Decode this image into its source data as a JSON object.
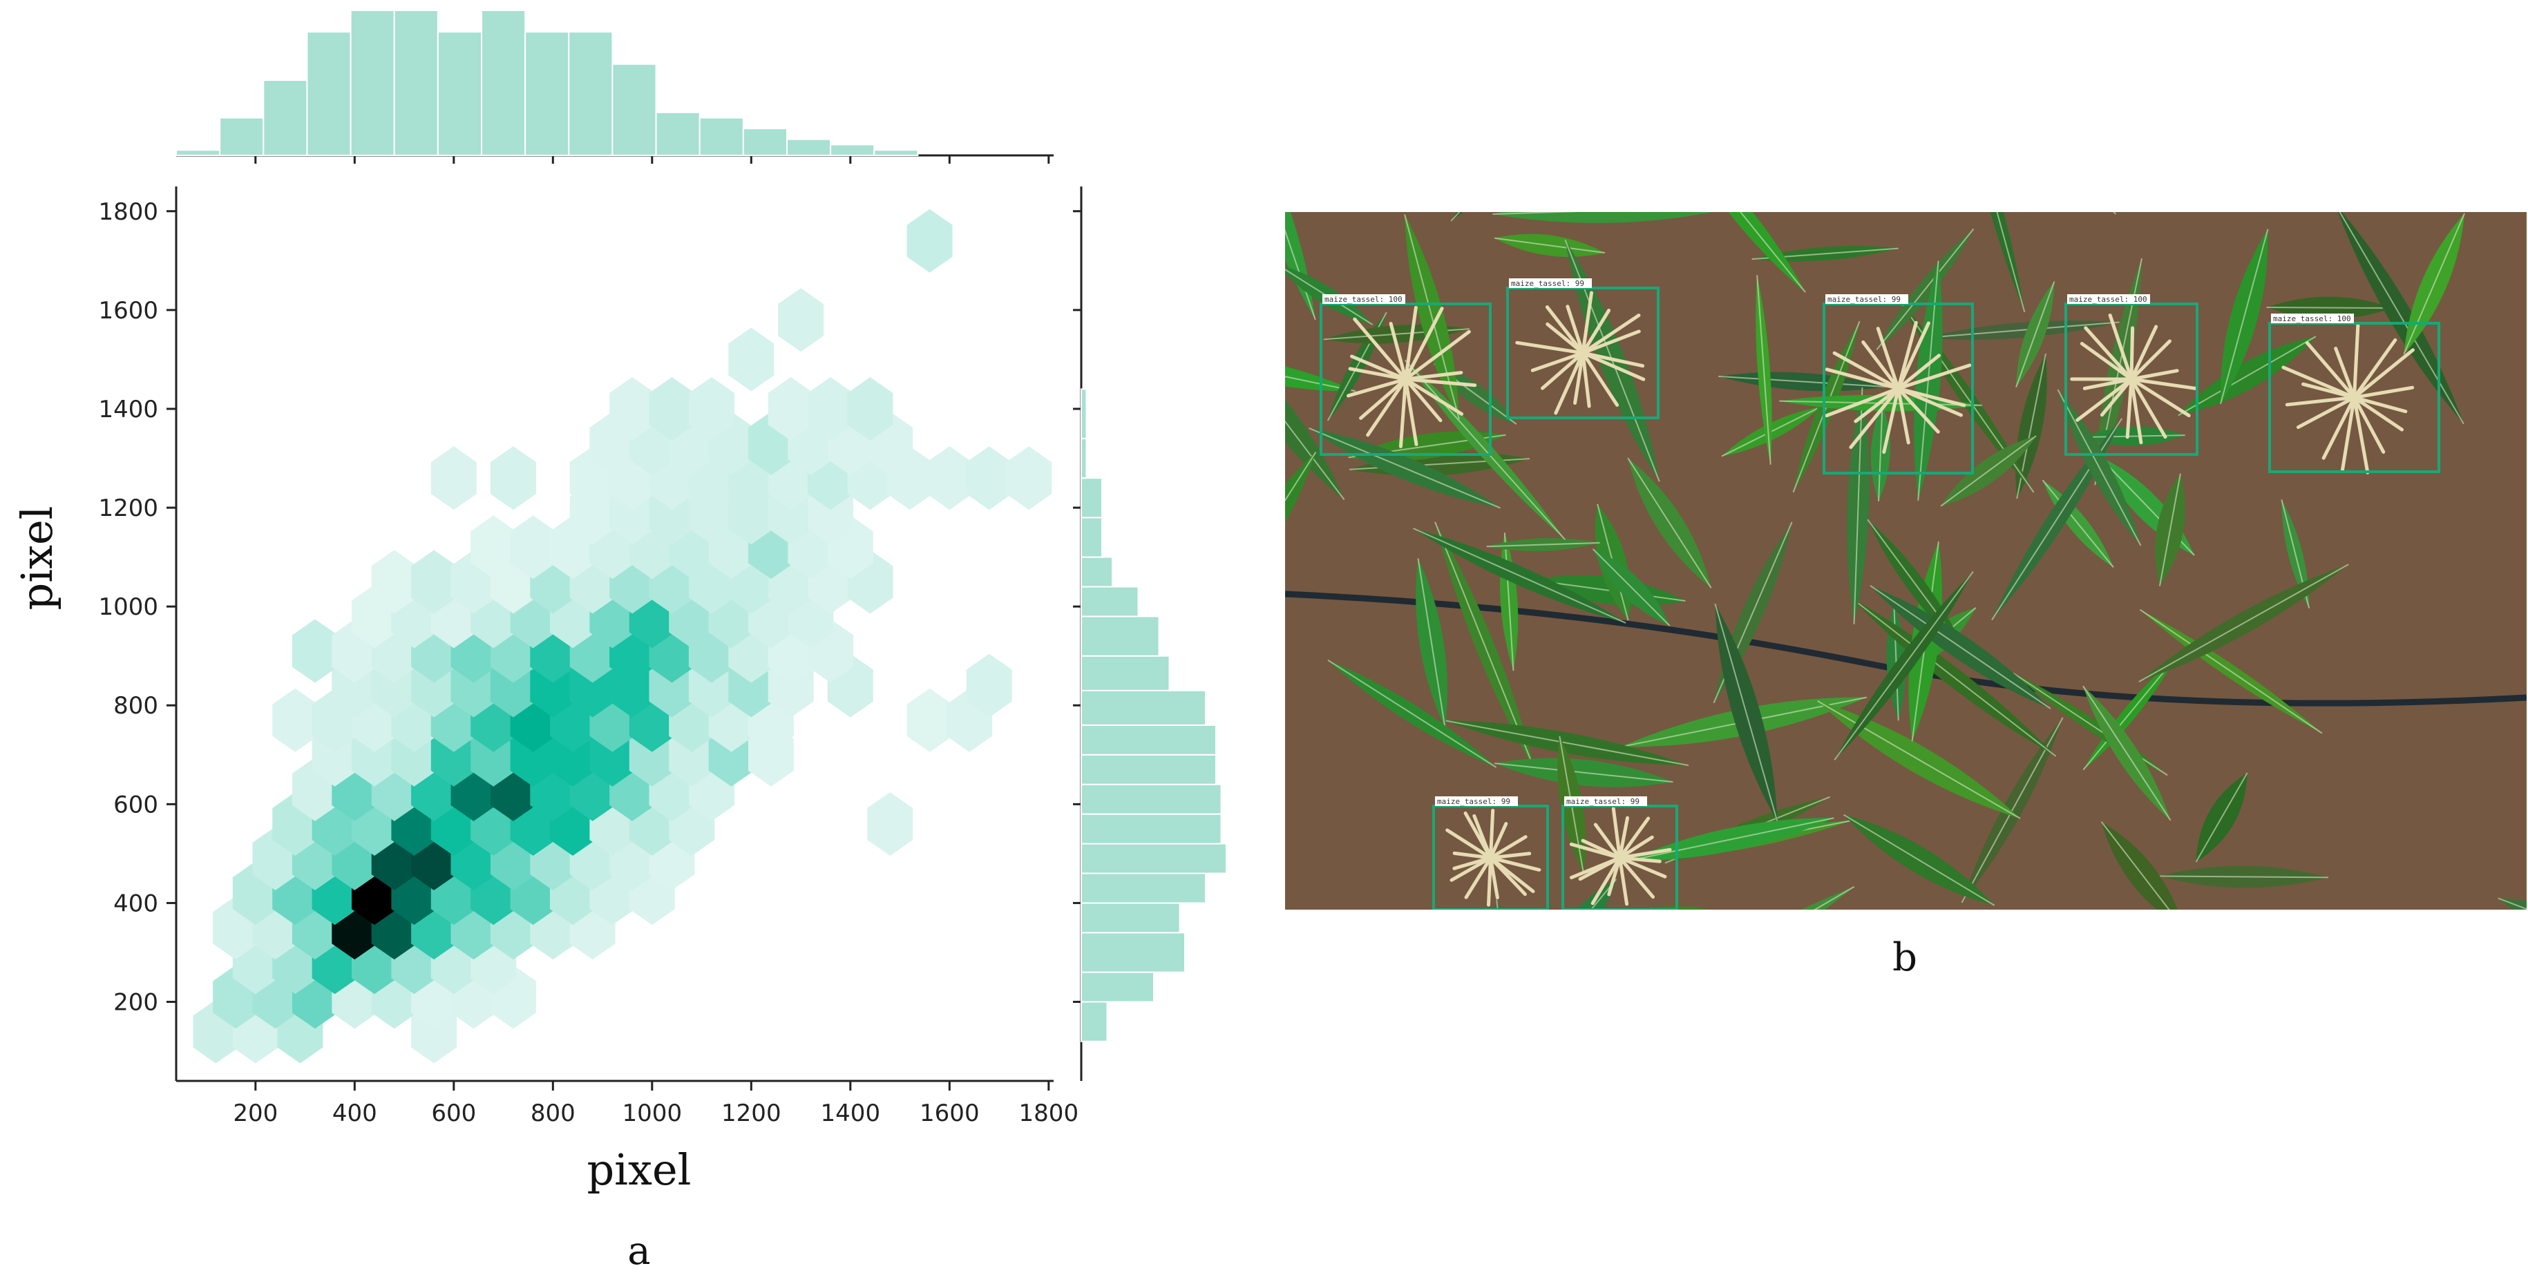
{
  "figure": {
    "panel_a_label": "a",
    "panel_b_label": "b"
  },
  "colors": {
    "hist_fill": "#a8e0d2",
    "hist_stroke": "#ffffff",
    "hex_light": "#e8f7f3",
    "hex_mid": "#00bb9a",
    "hex_dark": "#000000",
    "box_stroke": "#18a878",
    "soil": "#6b4f3a",
    "leaf": "#3f7f38"
  },
  "chart_data": [
    {
      "type": "heatmap",
      "subtype": "hexbin-jointplot",
      "title": "",
      "xlabel": "pixel",
      "ylabel": "pixel",
      "xlim": [
        40,
        1810
      ],
      "ylim": [
        40,
        1850
      ],
      "xticks": [
        200,
        400,
        600,
        800,
        1000,
        1200,
        1400,
        1600,
        1800
      ],
      "yticks": [
        200,
        400,
        600,
        800,
        1000,
        1200,
        1400,
        1600,
        1800
      ],
      "grid": false,
      "legend": "none",
      "hexbins": [
        {
          "x": 120,
          "y": 140,
          "w": 0.12
        },
        {
          "x": 200,
          "y": 140,
          "w": 0.08
        },
        {
          "x": 290,
          "y": 140,
          "w": 0.2
        },
        {
          "x": 560,
          "y": 140,
          "w": 0.06
        },
        {
          "x": 160,
          "y": 210,
          "w": 0.25
        },
        {
          "x": 240,
          "y": 210,
          "w": 0.3
        },
        {
          "x": 320,
          "y": 210,
          "w": 0.55
        },
        {
          "x": 400,
          "y": 210,
          "w": 0.1
        },
        {
          "x": 480,
          "y": 210,
          "w": 0.15
        },
        {
          "x": 560,
          "y": 210,
          "w": 0.05
        },
        {
          "x": 640,
          "y": 210,
          "w": 0.06
        },
        {
          "x": 720,
          "y": 210,
          "w": 0.05
        },
        {
          "x": 200,
          "y": 280,
          "w": 0.15
        },
        {
          "x": 280,
          "y": 280,
          "w": 0.3
        },
        {
          "x": 360,
          "y": 280,
          "w": 0.85
        },
        {
          "x": 440,
          "y": 280,
          "w": 0.6
        },
        {
          "x": 520,
          "y": 280,
          "w": 0.35
        },
        {
          "x": 600,
          "y": 280,
          "w": 0.15
        },
        {
          "x": 680,
          "y": 280,
          "w": 0.08
        },
        {
          "x": 160,
          "y": 350,
          "w": 0.08
        },
        {
          "x": 240,
          "y": 350,
          "w": 0.12
        },
        {
          "x": 320,
          "y": 350,
          "w": 0.45
        },
        {
          "x": 400,
          "y": 350,
          "w": 1.9
        },
        {
          "x": 480,
          "y": 350,
          "w": 1.5
        },
        {
          "x": 560,
          "y": 350,
          "w": 0.8
        },
        {
          "x": 640,
          "y": 350,
          "w": 0.45
        },
        {
          "x": 720,
          "y": 350,
          "w": 0.25
        },
        {
          "x": 800,
          "y": 350,
          "w": 0.12
        },
        {
          "x": 880,
          "y": 350,
          "w": 0.06
        },
        {
          "x": 200,
          "y": 420,
          "w": 0.2
        },
        {
          "x": 280,
          "y": 420,
          "w": 0.55
        },
        {
          "x": 360,
          "y": 420,
          "w": 0.9
        },
        {
          "x": 440,
          "y": 420,
          "w": 2.0
        },
        {
          "x": 520,
          "y": 420,
          "w": 1.4
        },
        {
          "x": 600,
          "y": 420,
          "w": 0.7
        },
        {
          "x": 680,
          "y": 420,
          "w": 0.85
        },
        {
          "x": 760,
          "y": 420,
          "w": 0.6
        },
        {
          "x": 840,
          "y": 420,
          "w": 0.2
        },
        {
          "x": 920,
          "y": 420,
          "w": 0.1
        },
        {
          "x": 1000,
          "y": 420,
          "w": 0.06
        },
        {
          "x": 240,
          "y": 490,
          "w": 0.15
        },
        {
          "x": 320,
          "y": 490,
          "w": 0.4
        },
        {
          "x": 400,
          "y": 490,
          "w": 0.6
        },
        {
          "x": 480,
          "y": 490,
          "w": 1.55
        },
        {
          "x": 560,
          "y": 490,
          "w": 1.6
        },
        {
          "x": 640,
          "y": 490,
          "w": 0.9
        },
        {
          "x": 720,
          "y": 490,
          "w": 0.55
        },
        {
          "x": 800,
          "y": 490,
          "w": 0.3
        },
        {
          "x": 880,
          "y": 490,
          "w": 0.15
        },
        {
          "x": 960,
          "y": 490,
          "w": 0.1
        },
        {
          "x": 1040,
          "y": 490,
          "w": 0.05
        },
        {
          "x": 280,
          "y": 560,
          "w": 0.2
        },
        {
          "x": 360,
          "y": 560,
          "w": 0.5
        },
        {
          "x": 440,
          "y": 560,
          "w": 0.45
        },
        {
          "x": 520,
          "y": 560,
          "w": 1.3
        },
        {
          "x": 600,
          "y": 560,
          "w": 0.95
        },
        {
          "x": 680,
          "y": 560,
          "w": 0.7
        },
        {
          "x": 760,
          "y": 560,
          "w": 0.9
        },
        {
          "x": 840,
          "y": 560,
          "w": 0.95
        },
        {
          "x": 920,
          "y": 560,
          "w": 0.12
        },
        {
          "x": 1000,
          "y": 560,
          "w": 0.2
        },
        {
          "x": 1080,
          "y": 560,
          "w": 0.1
        },
        {
          "x": 1480,
          "y": 560,
          "w": 0.06
        },
        {
          "x": 320,
          "y": 630,
          "w": 0.1
        },
        {
          "x": 400,
          "y": 630,
          "w": 0.55
        },
        {
          "x": 480,
          "y": 630,
          "w": 0.35
        },
        {
          "x": 560,
          "y": 630,
          "w": 0.85
        },
        {
          "x": 640,
          "y": 630,
          "w": 1.35
        },
        {
          "x": 720,
          "y": 630,
          "w": 1.45
        },
        {
          "x": 800,
          "y": 630,
          "w": 0.9
        },
        {
          "x": 880,
          "y": 630,
          "w": 0.85
        },
        {
          "x": 960,
          "y": 630,
          "w": 0.5
        },
        {
          "x": 1040,
          "y": 630,
          "w": 0.15
        },
        {
          "x": 1120,
          "y": 630,
          "w": 0.08
        },
        {
          "x": 360,
          "y": 700,
          "w": 0.08
        },
        {
          "x": 440,
          "y": 700,
          "w": 0.15
        },
        {
          "x": 520,
          "y": 700,
          "w": 0.2
        },
        {
          "x": 600,
          "y": 700,
          "w": 0.8
        },
        {
          "x": 680,
          "y": 700,
          "w": 0.6
        },
        {
          "x": 760,
          "y": 700,
          "w": 0.95
        },
        {
          "x": 840,
          "y": 700,
          "w": 0.95
        },
        {
          "x": 920,
          "y": 700,
          "w": 0.9
        },
        {
          "x": 1000,
          "y": 700,
          "w": 0.3
        },
        {
          "x": 1080,
          "y": 700,
          "w": 0.12
        },
        {
          "x": 1160,
          "y": 700,
          "w": 0.35
        },
        {
          "x": 1240,
          "y": 700,
          "w": 0.05
        },
        {
          "x": 280,
          "y": 770,
          "w": 0.06
        },
        {
          "x": 360,
          "y": 770,
          "w": 0.1
        },
        {
          "x": 440,
          "y": 770,
          "w": 0.08
        },
        {
          "x": 520,
          "y": 770,
          "w": 0.15
        },
        {
          "x": 600,
          "y": 770,
          "w": 0.45
        },
        {
          "x": 680,
          "y": 770,
          "w": 0.8
        },
        {
          "x": 760,
          "y": 770,
          "w": 1.05
        },
        {
          "x": 840,
          "y": 770,
          "w": 0.9
        },
        {
          "x": 920,
          "y": 770,
          "w": 0.6
        },
        {
          "x": 1000,
          "y": 770,
          "w": 0.85
        },
        {
          "x": 1080,
          "y": 770,
          "w": 0.2
        },
        {
          "x": 1160,
          "y": 770,
          "w": 0.1
        },
        {
          "x": 1240,
          "y": 770,
          "w": 0.05
        },
        {
          "x": 1560,
          "y": 770,
          "w": 0.04
        },
        {
          "x": 1640,
          "y": 770,
          "w": 0.06
        },
        {
          "x": 400,
          "y": 840,
          "w": 0.1
        },
        {
          "x": 480,
          "y": 840,
          "w": 0.12
        },
        {
          "x": 560,
          "y": 840,
          "w": 0.2
        },
        {
          "x": 640,
          "y": 840,
          "w": 0.4
        },
        {
          "x": 720,
          "y": 840,
          "w": 0.55
        },
        {
          "x": 800,
          "y": 840,
          "w": 0.95
        },
        {
          "x": 880,
          "y": 840,
          "w": 0.9
        },
        {
          "x": 960,
          "y": 840,
          "w": 0.9
        },
        {
          "x": 1040,
          "y": 840,
          "w": 0.35
        },
        {
          "x": 1120,
          "y": 840,
          "w": 0.15
        },
        {
          "x": 1200,
          "y": 840,
          "w": 0.3
        },
        {
          "x": 1280,
          "y": 840,
          "w": 0.06
        },
        {
          "x": 1400,
          "y": 840,
          "w": 0.1
        },
        {
          "x": 1680,
          "y": 840,
          "w": 0.08
        },
        {
          "x": 320,
          "y": 910,
          "w": 0.15
        },
        {
          "x": 400,
          "y": 910,
          "w": 0.06
        },
        {
          "x": 480,
          "y": 910,
          "w": 0.1
        },
        {
          "x": 560,
          "y": 910,
          "w": 0.3
        },
        {
          "x": 640,
          "y": 910,
          "w": 0.5
        },
        {
          "x": 720,
          "y": 910,
          "w": 0.4
        },
        {
          "x": 800,
          "y": 910,
          "w": 0.85
        },
        {
          "x": 880,
          "y": 910,
          "w": 0.5
        },
        {
          "x": 960,
          "y": 910,
          "w": 0.9
        },
        {
          "x": 1040,
          "y": 910,
          "w": 0.7
        },
        {
          "x": 1120,
          "y": 910,
          "w": 0.3
        },
        {
          "x": 1200,
          "y": 910,
          "w": 0.12
        },
        {
          "x": 1280,
          "y": 910,
          "w": 0.05
        },
        {
          "x": 1360,
          "y": 910,
          "w": 0.06
        },
        {
          "x": 440,
          "y": 980,
          "w": 0.04
        },
        {
          "x": 520,
          "y": 980,
          "w": 0.1
        },
        {
          "x": 600,
          "y": 980,
          "w": 0.06
        },
        {
          "x": 680,
          "y": 980,
          "w": 0.15
        },
        {
          "x": 760,
          "y": 980,
          "w": 0.3
        },
        {
          "x": 840,
          "y": 980,
          "w": 0.15
        },
        {
          "x": 920,
          "y": 980,
          "w": 0.5
        },
        {
          "x": 1000,
          "y": 980,
          "w": 0.85
        },
        {
          "x": 1080,
          "y": 980,
          "w": 0.3
        },
        {
          "x": 1160,
          "y": 980,
          "w": 0.2
        },
        {
          "x": 1240,
          "y": 980,
          "w": 0.1
        },
        {
          "x": 1320,
          "y": 980,
          "w": 0.08
        },
        {
          "x": 480,
          "y": 1050,
          "w": 0.04
        },
        {
          "x": 560,
          "y": 1050,
          "w": 0.12
        },
        {
          "x": 640,
          "y": 1050,
          "w": 0.08
        },
        {
          "x": 720,
          "y": 1050,
          "w": 0.04
        },
        {
          "x": 800,
          "y": 1050,
          "w": 0.25
        },
        {
          "x": 880,
          "y": 1050,
          "w": 0.12
        },
        {
          "x": 960,
          "y": 1050,
          "w": 0.3
        },
        {
          "x": 1040,
          "y": 1050,
          "w": 0.25
        },
        {
          "x": 1120,
          "y": 1050,
          "w": 0.15
        },
        {
          "x": 1200,
          "y": 1050,
          "w": 0.15
        },
        {
          "x": 1280,
          "y": 1050,
          "w": 0.1
        },
        {
          "x": 1360,
          "y": 1050,
          "w": 0.06
        },
        {
          "x": 1440,
          "y": 1050,
          "w": 0.1
        },
        {
          "x": 680,
          "y": 1120,
          "w": 0.04
        },
        {
          "x": 760,
          "y": 1120,
          "w": 0.06
        },
        {
          "x": 840,
          "y": 1120,
          "w": 0.05
        },
        {
          "x": 920,
          "y": 1120,
          "w": 0.1
        },
        {
          "x": 1000,
          "y": 1120,
          "w": 0.12
        },
        {
          "x": 1080,
          "y": 1120,
          "w": 0.15
        },
        {
          "x": 1160,
          "y": 1120,
          "w": 0.1
        },
        {
          "x": 1240,
          "y": 1120,
          "w": 0.3
        },
        {
          "x": 1320,
          "y": 1120,
          "w": 0.08
        },
        {
          "x": 1400,
          "y": 1120,
          "w": 0.05
        },
        {
          "x": 880,
          "y": 1190,
          "w": 0.05
        },
        {
          "x": 960,
          "y": 1190,
          "w": 0.08
        },
        {
          "x": 1040,
          "y": 1190,
          "w": 0.12
        },
        {
          "x": 1120,
          "y": 1190,
          "w": 0.1
        },
        {
          "x": 1200,
          "y": 1190,
          "w": 0.12
        },
        {
          "x": 1280,
          "y": 1190,
          "w": 0.1
        },
        {
          "x": 1360,
          "y": 1190,
          "w": 0.06
        },
        {
          "x": 600,
          "y": 1260,
          "w": 0.06
        },
        {
          "x": 720,
          "y": 1260,
          "w": 0.08
        },
        {
          "x": 880,
          "y": 1260,
          "w": 0.05
        },
        {
          "x": 960,
          "y": 1260,
          "w": 0.06
        },
        {
          "x": 1040,
          "y": 1260,
          "w": 0.08
        },
        {
          "x": 1120,
          "y": 1260,
          "w": 0.1
        },
        {
          "x": 1200,
          "y": 1260,
          "w": 0.12
        },
        {
          "x": 1280,
          "y": 1260,
          "w": 0.08
        },
        {
          "x": 1360,
          "y": 1260,
          "w": 0.15
        },
        {
          "x": 1440,
          "y": 1260,
          "w": 0.08
        },
        {
          "x": 1520,
          "y": 1260,
          "w": 0.06
        },
        {
          "x": 1600,
          "y": 1260,
          "w": 0.06
        },
        {
          "x": 1680,
          "y": 1260,
          "w": 0.08
        },
        {
          "x": 1760,
          "y": 1260,
          "w": 0.06
        },
        {
          "x": 920,
          "y": 1330,
          "w": 0.06
        },
        {
          "x": 1000,
          "y": 1330,
          "w": 0.1
        },
        {
          "x": 1080,
          "y": 1330,
          "w": 0.08
        },
        {
          "x": 1160,
          "y": 1330,
          "w": 0.1
        },
        {
          "x": 1240,
          "y": 1330,
          "w": 0.2
        },
        {
          "x": 1320,
          "y": 1330,
          "w": 0.08
        },
        {
          "x": 1400,
          "y": 1330,
          "w": 0.06
        },
        {
          "x": 1480,
          "y": 1330,
          "w": 0.06
        },
        {
          "x": 960,
          "y": 1400,
          "w": 0.06
        },
        {
          "x": 1040,
          "y": 1400,
          "w": 0.12
        },
        {
          "x": 1120,
          "y": 1400,
          "w": 0.08
        },
        {
          "x": 1280,
          "y": 1400,
          "w": 0.06
        },
        {
          "x": 1360,
          "y": 1400,
          "w": 0.08
        },
        {
          "x": 1440,
          "y": 1400,
          "w": 0.12
        },
        {
          "x": 1200,
          "y": 1500,
          "w": 0.08
        },
        {
          "x": 1300,
          "y": 1580,
          "w": 0.08
        },
        {
          "x": 1560,
          "y": 1740,
          "w": 0.15
        }
      ],
      "marginal_x_histogram": {
        "bin_edges": [
          40,
          128,
          216,
          304,
          392,
          480,
          568,
          656,
          744,
          832,
          920,
          1008,
          1096,
          1184,
          1272,
          1360,
          1448,
          1536,
          1624
        ],
        "counts": [
          1,
          7,
          14,
          23,
          27,
          27,
          23,
          27,
          23,
          23,
          17,
          8,
          7,
          5,
          3,
          2,
          1,
          0
        ]
      },
      "marginal_y_histogram": {
        "bin_edges": [
          120,
          200,
          260,
          340,
          400,
          460,
          520,
          580,
          640,
          700,
          760,
          830,
          900,
          980,
          1040,
          1100,
          1180,
          1260,
          1340,
          1440
        ],
        "counts": [
          5,
          14,
          20,
          19,
          24,
          28,
          27,
          27,
          26,
          26,
          24,
          17,
          15,
          11,
          6,
          4,
          4,
          1,
          1
        ]
      }
    }
  ],
  "panel_b": {
    "box_tags": [
      "maize_tassel: 100",
      "maize_tassel: 99",
      "maize_tassel: 99",
      "maize_tassel: 100",
      "maize_tassel: 100",
      "maize_tassel: 99",
      "maize_tassel: 99"
    ]
  }
}
